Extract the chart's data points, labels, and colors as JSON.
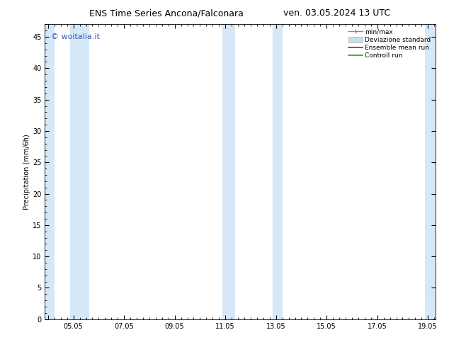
{
  "title_left": "ENS Time Series Ancona/Falconara",
  "title_right": "ven. 03.05.2024 13 UTC",
  "ylabel": "Precipitation (mm/6h)",
  "watermark": "© woitalia.it",
  "watermark_color": "#3355bb",
  "ylim": [
    0,
    47
  ],
  "yticks": [
    0,
    5,
    10,
    15,
    20,
    25,
    30,
    35,
    40,
    45
  ],
  "bg_color": "#ffffff",
  "plot_bg_color": "#ffffff",
  "shade_color": "#d6e8f7",
  "shade_regions": [
    [
      3.875,
      4.25
    ],
    [
      4.875,
      5.625
    ],
    [
      10.875,
      11.375
    ],
    [
      12.875,
      13.25
    ],
    [
      18.875,
      19.3
    ]
  ],
  "xlim_start": 3.875,
  "xlim_end": 19.3,
  "xtick_positions": [
    4.0,
    5.0,
    7.0,
    9.0,
    11.0,
    13.0,
    15.0,
    17.0,
    19.0
  ],
  "xtick_labels": [
    "",
    "05.05",
    "07.05",
    "09.05",
    "11.05",
    "13.05",
    "15.05",
    "17.05",
    "19.05"
  ],
  "legend_labels": [
    "min/max",
    "Deviazione standard",
    "Ensemble mean run",
    "Controll run"
  ],
  "legend_handle_colors": [
    "#888888",
    "#c8dff0",
    "#ff0000",
    "#00bb00"
  ],
  "title_fontsize": 9,
  "axis_fontsize": 7,
  "tick_fontsize": 7,
  "watermark_fontsize": 8
}
